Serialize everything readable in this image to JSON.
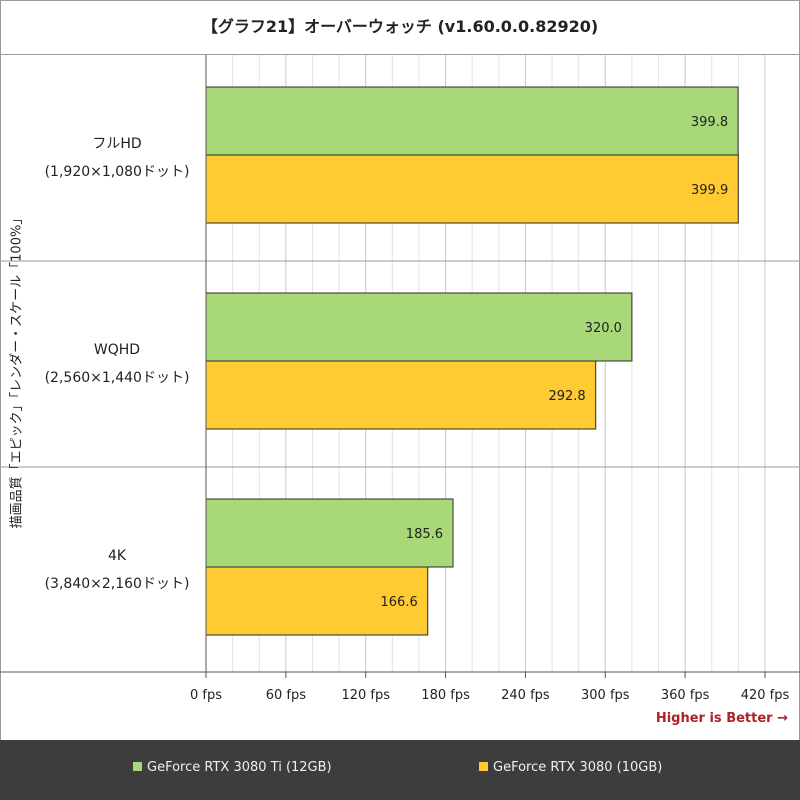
{
  "chart_data": {
    "type": "bar",
    "orientation": "horizontal",
    "title": "【グラフ21】オーバーウォッチ (v1.60.0.0.82920)",
    "ylabel": "描画品質「エピック」「レンダー・スケール「100%」",
    "xlabel": "",
    "categories": [
      {
        "name": "フルHD",
        "detail": "(1,920×1,080ドット)"
      },
      {
        "name": "WQHD",
        "detail": "(2,560×1,440ドット)"
      },
      {
        "name": "4K",
        "detail": "(3,840×2,160ドット)"
      }
    ],
    "series": [
      {
        "name": "GeForce RTX 3080 Ti (12GB)",
        "color": "#a8d878",
        "values": [
          399.8,
          320.0,
          185.6
        ],
        "labels": [
          "399.8",
          "320.0",
          "185.6"
        ]
      },
      {
        "name": "GeForce RTX 3080 (10GB)",
        "color": "#ffca32",
        "values": [
          399.9,
          292.8,
          166.6
        ],
        "labels": [
          "399.9",
          "292.8",
          "166.6"
        ]
      }
    ],
    "xlim": [
      0,
      420
    ],
    "major_ticks": [
      0,
      60,
      120,
      180,
      240,
      300,
      360,
      420
    ],
    "minor_step": 20,
    "tick_labels": [
      "0 fps",
      "60 fps",
      "120 fps",
      "180 fps",
      "240 fps",
      "300 fps",
      "360 fps",
      "420 fps"
    ],
    "grid": true,
    "legend_position": "bottom",
    "annotation": "Higher is Better →"
  }
}
